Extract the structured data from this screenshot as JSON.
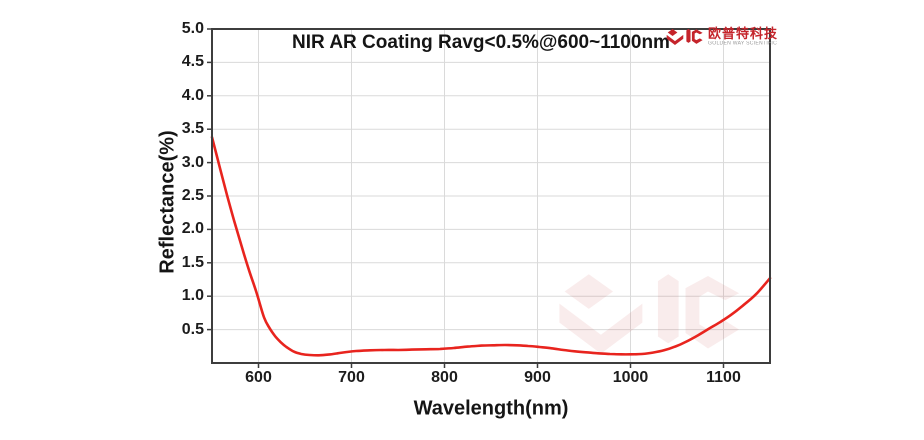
{
  "page": {
    "background": "#ffffff"
  },
  "brand": {
    "name_cn": "欧普特科技",
    "name_en": "GOLDEN WAY SCIENTIFIC",
    "logo_color": "#c5242b",
    "watermark_color": "#cc4b4b"
  },
  "chart_data": {
    "type": "line",
    "title": "NIR AR Coating Ravg<0.5%@600~1100nm",
    "xlabel": "Wavelength(nm)",
    "ylabel": "Reflectance(%)",
    "xlim": [
      550,
      1150
    ],
    "ylim": [
      0,
      5
    ],
    "x_ticks": [
      600,
      700,
      800,
      900,
      1000,
      1100
    ],
    "y_ticks": [
      0.5,
      1.0,
      1.5,
      2.0,
      2.5,
      3.0,
      3.5,
      4.0,
      4.5,
      5.0
    ],
    "grid": true,
    "legend": "none",
    "line_color": "#e8241e",
    "series": [
      {
        "name": "Reflectance",
        "points": [
          [
            550,
            3.38
          ],
          [
            558,
            2.95
          ],
          [
            566,
            2.52
          ],
          [
            574,
            2.12
          ],
          [
            582,
            1.74
          ],
          [
            590,
            1.38
          ],
          [
            598,
            1.05
          ],
          [
            606,
            0.68
          ],
          [
            612,
            0.52
          ],
          [
            618,
            0.4
          ],
          [
            624,
            0.31
          ],
          [
            630,
            0.24
          ],
          [
            638,
            0.17
          ],
          [
            646,
            0.135
          ],
          [
            655,
            0.12
          ],
          [
            665,
            0.115
          ],
          [
            675,
            0.125
          ],
          [
            685,
            0.145
          ],
          [
            695,
            0.165
          ],
          [
            705,
            0.18
          ],
          [
            720,
            0.19
          ],
          [
            735,
            0.195
          ],
          [
            750,
            0.195
          ],
          [
            765,
            0.2
          ],
          [
            780,
            0.205
          ],
          [
            795,
            0.21
          ],
          [
            810,
            0.225
          ],
          [
            825,
            0.245
          ],
          [
            840,
            0.26
          ],
          [
            852,
            0.265
          ],
          [
            865,
            0.27
          ],
          [
            878,
            0.265
          ],
          [
            890,
            0.255
          ],
          [
            902,
            0.24
          ],
          [
            915,
            0.22
          ],
          [
            928,
            0.195
          ],
          [
            940,
            0.175
          ],
          [
            952,
            0.16
          ],
          [
            965,
            0.145
          ],
          [
            978,
            0.135
          ],
          [
            990,
            0.13
          ],
          [
            1000,
            0.13
          ],
          [
            1012,
            0.135
          ],
          [
            1024,
            0.155
          ],
          [
            1036,
            0.19
          ],
          [
            1048,
            0.245
          ],
          [
            1060,
            0.32
          ],
          [
            1072,
            0.41
          ],
          [
            1084,
            0.51
          ],
          [
            1096,
            0.61
          ],
          [
            1108,
            0.72
          ],
          [
            1120,
            0.85
          ],
          [
            1135,
            1.03
          ],
          [
            1150,
            1.27
          ]
        ]
      }
    ]
  }
}
